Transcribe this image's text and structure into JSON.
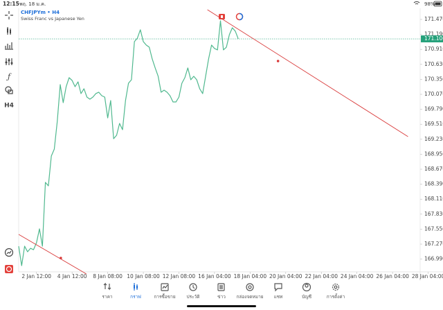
{
  "status_bar": {
    "time": "12:15",
    "date": "พฤ. 18 ม.ค.",
    "battery": "98%"
  },
  "toolbar": {
    "timeframe": "H4"
  },
  "chart_data": {
    "type": "line",
    "title": "CHFJPYm • H4",
    "subtitle": "Swiss Franc vs Japanese Yen",
    "color": "#4fb88e",
    "values": [
      167.231,
      166.868,
      167.231,
      167.127,
      167.192,
      167.166,
      167.296,
      167.555,
      167.231,
      168.424,
      168.359,
      168.916,
      169.046,
      169.564,
      170.251,
      169.914,
      170.213,
      170.381,
      170.329,
      170.213,
      170.303,
      170.083,
      170.174,
      170.018,
      169.979,
      170.018,
      170.083,
      170.109,
      170.044,
      170.018,
      169.629,
      169.953,
      169.24,
      169.305,
      169.526,
      169.409,
      169.953,
      170.277,
      170.342,
      171.055,
      171.12,
      171.276,
      171.055,
      170.99,
      170.951,
      170.731,
      170.563,
      170.407,
      170.109,
      170.148,
      170.109,
      170.044,
      169.927,
      169.927,
      170.018,
      170.277,
      170.381,
      170.563,
      170.342,
      170.407,
      170.342,
      170.174,
      170.083,
      170.407,
      170.731,
      170.99,
      170.926,
      170.9,
      171.444,
      170.9,
      170.951,
      171.185,
      171.314,
      171.25,
      171.106
    ],
    "current_price": 171.106,
    "current_price_color": "#26a17b",
    "trend_lines": [
      {
        "color": "#d93a3a",
        "points": [
          [
            0,
            167.452
          ],
          [
            22.8,
            166.713
          ]
        ],
        "anchor": [
          14.2,
          167.011
        ]
      },
      {
        "color": "#d93a3a",
        "points": [
          [
            63.6,
            171.651
          ],
          [
            131.2,
            169.279
          ]
        ],
        "anchor": [
          87.4,
          170.692
        ]
      }
    ],
    "xlim": [
      0,
      143
    ],
    "ylim": [
      166.648,
      171.677
    ],
    "xticks": [
      {
        "value": 6,
        "label": "2 Jan 12:00"
      },
      {
        "value": 18,
        "label": "4 Jan 12:00"
      },
      {
        "value": 30,
        "label": "8 Jan 08:00"
      },
      {
        "value": 42,
        "label": "10 Jan 08:00"
      },
      {
        "value": 54,
        "label": "12 Jan 08:00"
      },
      {
        "value": 66,
        "label": "16 Jan 04:00"
      },
      {
        "value": 78,
        "label": "18 Jan 04:00"
      },
      {
        "value": 90,
        "label": "20 Jan 04:00"
      },
      {
        "value": 102,
        "label": "22 Jan 04:00"
      },
      {
        "value": 114,
        "label": "24 Jan 04:00"
      },
      {
        "value": 126,
        "label": "26 Jan 04:00"
      },
      {
        "value": 138,
        "label": "28 Jan 04:00"
      }
    ],
    "yticks": [
      {
        "value": 171.47,
        "label": "171.470"
      },
      {
        "value": 171.19,
        "label": "171.190"
      },
      {
        "value": 170.91,
        "label": "170.910"
      },
      {
        "value": 170.63,
        "label": "170.630"
      },
      {
        "value": 170.35,
        "label": "170.350"
      },
      {
        "value": 170.07,
        "label": "170.070"
      },
      {
        "value": 169.79,
        "label": "169.790"
      },
      {
        "value": 169.51,
        "label": "169.510"
      },
      {
        "value": 169.23,
        "label": "169.230"
      },
      {
        "value": 168.95,
        "label": "168.950"
      },
      {
        "value": 168.67,
        "label": "168.670"
      },
      {
        "value": 168.39,
        "label": "168.390"
      },
      {
        "value": 168.11,
        "label": "168.110"
      },
      {
        "value": 167.83,
        "label": "167.830"
      },
      {
        "value": 167.55,
        "label": "167.550"
      },
      {
        "value": 167.27,
        "label": "167.270"
      },
      {
        "value": 166.99,
        "label": "166.990"
      }
    ]
  },
  "bottom_nav": {
    "items": [
      "ราคา",
      "กราฟ",
      "การซื้อขาย",
      "ประวัติ",
      "ข่าว",
      "กล่องจดหมาย",
      "แชท",
      "บัญชี",
      "การตั้งค่า"
    ]
  }
}
